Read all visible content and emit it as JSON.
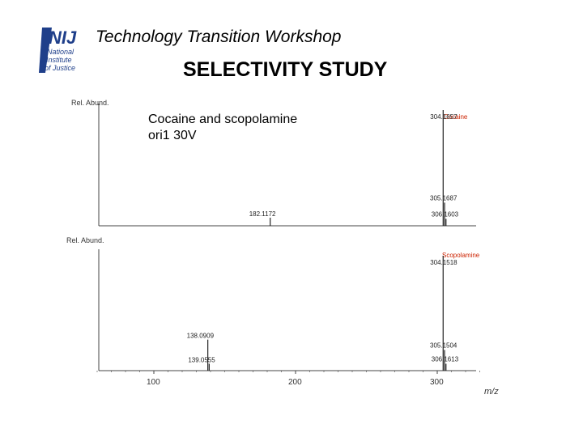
{
  "header": {
    "logo_letters": "NIJ",
    "logo_lines": [
      "National",
      "Institute",
      "of Justice"
    ],
    "workshop_title": "Technology Transition Workshop",
    "slide_title": "SELECTIVITY STUDY"
  },
  "caption": {
    "line1": "Cocaine and scopolamine",
    "line2": "ori1 30V"
  },
  "colors": {
    "compound_label": "#cc2200",
    "axis": "#444444",
    "peak": "#222222"
  },
  "chart_data": {
    "type": "bar",
    "x_ticks": [
      100,
      200,
      300
    ],
    "xlim": [
      55,
      335
    ],
    "xlabel": "m/z",
    "panels": [
      {
        "ylabel": "Rel. Abund.",
        "compound": "Cocaine",
        "ylim": [
          0,
          100
        ],
        "peaks": [
          {
            "mz": 182.1172,
            "label": "182.1172",
            "rel": 7
          },
          {
            "mz": 304.1657,
            "label": "304.1657",
            "rel": 100
          },
          {
            "mz": 305.1687,
            "label": "305.1687",
            "rel": 20
          },
          {
            "mz": 306.1603,
            "label": "306.1603",
            "rel": 6
          }
        ]
      },
      {
        "ylabel": "Rel. Abund.",
        "compound": "Scopolamine",
        "ylim": [
          0,
          100
        ],
        "peaks": [
          {
            "mz": 138.0909,
            "label": "138.0909",
            "rel": 27
          },
          {
            "mz": 139.0555,
            "label": "139.0555",
            "rel": 6
          },
          {
            "mz": 304.1518,
            "label": "304.1518",
            "rel": 100
          },
          {
            "mz": 305.1504,
            "label": "305.1504",
            "rel": 18
          },
          {
            "mz": 306.1613,
            "label": "306.1613",
            "rel": 6
          }
        ]
      }
    ]
  }
}
